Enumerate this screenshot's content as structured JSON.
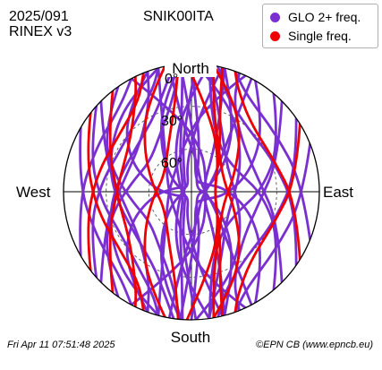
{
  "header": {
    "date": "2025/091",
    "format": "RINEX v3",
    "station": "SNIK00ITA"
  },
  "footer": {
    "timestamp": "Fri Apr 11 07:51:48 2025",
    "credit": "©EPN CB (www.epncb.eu)"
  },
  "chart_data": {
    "type": "skyplot",
    "directions": {
      "north": "North",
      "south": "South",
      "east": "East",
      "west": "West"
    },
    "elevation_labels": [
      "0°",
      "30°",
      "60°"
    ],
    "elevation_rings_deg": [
      30,
      60
    ],
    "legend_placement": "top-right",
    "legend": [
      {
        "label": "GLO 2+ freq.",
        "color": "#7a2fd0"
      },
      {
        "label": "Single freq.",
        "color": "#ee0000"
      }
    ],
    "series": [
      {
        "name": "GLO 2+ freq.",
        "color": "#7a2fd0",
        "tracks": [
          [
            [
              -20,
              0
            ],
            [
              -40,
              18
            ],
            [
              -62,
              40
            ],
            [
              -84,
              62
            ],
            [
              -110,
              80
            ],
            [
              -140,
              87
            ],
            [
              -170,
              70
            ],
            [
              -185,
              40
            ],
            [
              -192,
              12
            ],
            [
              -194,
              0
            ]
          ],
          [
            [
              -5,
              0
            ],
            [
              -18,
              24
            ],
            [
              -35,
              52
            ],
            [
              -60,
              74
            ],
            [
              -100,
              86
            ],
            [
              -150,
              80
            ],
            [
              -170,
              55
            ],
            [
              -178,
              30
            ],
            [
              -182,
              0
            ]
          ],
          [
            [
              8,
              0
            ],
            [
              -5,
              30
            ],
            [
              -20,
              56
            ],
            [
              -50,
              78
            ],
            [
              -110,
              84
            ],
            [
              -160,
              66
            ],
            [
              -172,
              40
            ],
            [
              -176,
              0
            ]
          ],
          [
            [
              25,
              0
            ],
            [
              10,
              28
            ],
            [
              -8,
              55
            ],
            [
              -40,
              72
            ],
            [
              -90,
              74
            ],
            [
              -140,
              62
            ],
            [
              -158,
              35
            ],
            [
              -165,
              0
            ]
          ],
          [
            [
              -35,
              0
            ],
            [
              -55,
              15
            ],
            [
              -75,
              32
            ],
            [
              -100,
              48
            ],
            [
              -125,
              54
            ],
            [
              -150,
              45
            ],
            [
              -168,
              25
            ],
            [
              -175,
              0
            ]
          ],
          [
            [
              -48,
              0
            ],
            [
              -70,
              14
            ],
            [
              -95,
              26
            ],
            [
              -120,
              32
            ],
            [
              -145,
              25
            ],
            [
              -160,
              12
            ],
            [
              -165,
              0
            ]
          ],
          [
            [
              -60,
              0
            ],
            [
              -85,
              10
            ],
            [
              -115,
              16
            ],
            [
              -140,
              12
            ],
            [
              -152,
              0
            ]
          ],
          [
            [
              -15,
              0
            ],
            [
              -30,
              10
            ],
            [
              -50,
              20
            ],
            [
              -75,
              30
            ],
            [
              -100,
              38
            ],
            [
              -130,
              40
            ],
            [
              -155,
              30
            ],
            [
              -168,
              10
            ],
            [
              -172,
              0
            ]
          ],
          [
            [
              30,
              0
            ],
            [
              48,
              22
            ],
            [
              70,
              45
            ],
            [
              95,
              65
            ],
            [
              125,
              80
            ],
            [
              160,
              82
            ],
            [
              175,
              60
            ],
            [
              182,
              30
            ],
            [
              185,
              0
            ]
          ],
          [
            [
              15,
              0
            ],
            [
              30,
              30
            ],
            [
              50,
              58
            ],
            [
              85,
              80
            ],
            [
              140,
              86
            ],
            [
              168,
              62
            ],
            [
              176,
              35
            ],
            [
              180,
              0
            ]
          ],
          [
            [
              40,
              0
            ],
            [
              62,
              20
            ],
            [
              88,
              40
            ],
            [
              115,
              55
            ],
            [
              145,
              54
            ],
            [
              165,
              35
            ],
            [
              172,
              0
            ]
          ],
          [
            [
              55,
              0
            ],
            [
              80,
              15
            ],
            [
              110,
              28
            ],
            [
              140,
              30
            ],
            [
              160,
              18
            ],
            [
              168,
              0
            ]
          ],
          [
            [
              68,
              0
            ],
            [
              95,
              12
            ],
            [
              125,
              18
            ],
            [
              150,
              12
            ],
            [
              160,
              0
            ]
          ],
          [
            [
              2,
              0
            ],
            [
              20,
              20
            ],
            [
              40,
              38
            ],
            [
              65,
              52
            ],
            [
              95,
              60
            ],
            [
              130,
              58
            ],
            [
              155,
              40
            ],
            [
              168,
              15
            ],
            [
              172,
              0
            ]
          ],
          [
            [
              -28,
              0
            ],
            [
              -10,
              35
            ],
            [
              15,
              60
            ],
            [
              60,
              78
            ],
            [
              120,
              80
            ],
            [
              150,
              60
            ],
            [
              160,
              30
            ],
            [
              165,
              0
            ]
          ],
          [
            [
              -45,
              0
            ],
            [
              -70,
              25
            ],
            [
              -100,
              42
            ],
            [
              -135,
              40
            ],
            [
              -155,
              20
            ],
            [
              -160,
              0
            ]
          ],
          [
            [
              45,
              0
            ],
            [
              70,
              25
            ],
            [
              100,
              42
            ],
            [
              135,
              40
            ],
            [
              155,
              20
            ],
            [
              158,
              0
            ]
          ],
          [
            [
              -10,
              0
            ],
            [
              -8,
              40
            ],
            [
              10,
              68
            ],
            [
              60,
              82
            ],
            [
              120,
              72
            ],
            [
              145,
              45
            ],
            [
              152,
              0
            ]
          ]
        ]
      },
      {
        "name": "Single freq.",
        "color": "#ee0000",
        "tracks": [
          [
            [
              -12,
              0
            ],
            [
              -28,
              22
            ],
            [
              -48,
              45
            ],
            [
              -80,
              62
            ],
            [
              -120,
              68
            ],
            [
              -155,
              52
            ],
            [
              -170,
              25
            ],
            [
              -174,
              0
            ]
          ],
          [
            [
              -52,
              0
            ],
            [
              -72,
              12
            ],
            [
              -100,
              22
            ],
            [
              -130,
              25
            ],
            [
              -150,
              16
            ],
            [
              -158,
              0
            ]
          ],
          [
            [
              10,
              0
            ],
            [
              24,
              18
            ],
            [
              42,
              38
            ],
            [
              70,
              58
            ],
            [
              110,
              66
            ],
            [
              145,
              56
            ],
            [
              165,
              30
            ],
            [
              170,
              0
            ]
          ],
          [
            [
              58,
              0
            ],
            [
              84,
              16
            ],
            [
              112,
              28
            ],
            [
              140,
              26
            ],
            [
              156,
              10
            ],
            [
              160,
              0
            ]
          ],
          [
            [
              -2,
              0
            ],
            [
              14,
              35
            ],
            [
              40,
              60
            ],
            [
              95,
              74
            ],
            [
              145,
              55
            ],
            [
              162,
              25
            ],
            [
              166,
              0
            ]
          ],
          [
            [
              -38,
              0
            ],
            [
              -60,
              22
            ],
            [
              -95,
              38
            ],
            [
              -130,
              34
            ],
            [
              -150,
              12
            ],
            [
              -154,
              0
            ]
          ]
        ]
      }
    ]
  }
}
